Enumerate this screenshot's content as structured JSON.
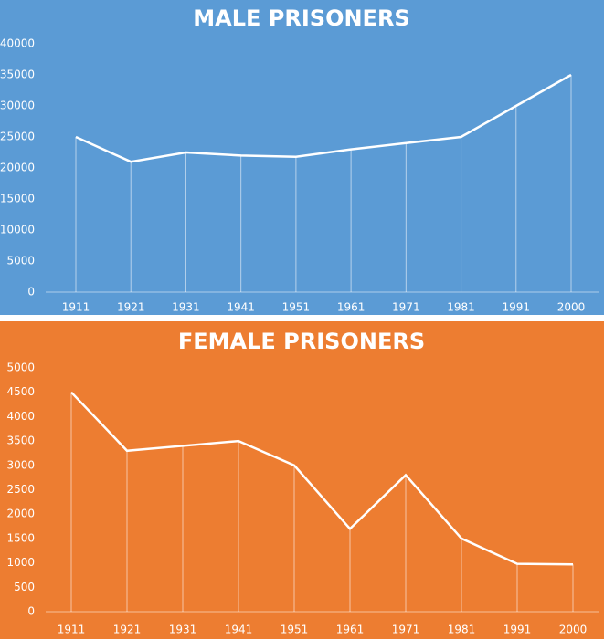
{
  "chart_data": [
    {
      "type": "line",
      "title": "MALE PRISONERS",
      "background": "#5b9bd5",
      "color": "#ffffff",
      "drop_lines": true,
      "categories": [
        "1911",
        "1921",
        "1931",
        "1941",
        "1951",
        "1961",
        "1971",
        "1981",
        "1991",
        "2000"
      ],
      "values": [
        25000,
        21000,
        22500,
        22000,
        21800,
        23000,
        24000,
        25000,
        30000,
        35000
      ],
      "ylim": [
        0,
        40000
      ],
      "yticks": [
        0,
        5000,
        10000,
        15000,
        20000,
        25000,
        30000,
        35000,
        40000
      ]
    },
    {
      "type": "line",
      "title": "FEMALE PRISONERS",
      "background": "#ed7d31",
      "color": "#ffffff",
      "drop_lines": true,
      "categories": [
        "1911",
        "1921",
        "1931",
        "1941",
        "1951",
        "1961",
        "1971",
        "1981",
        "1991",
        "2000"
      ],
      "values": [
        4500,
        3300,
        3400,
        3500,
        3000,
        1700,
        2800,
        1500,
        980,
        970
      ],
      "ylim": [
        0,
        5000
      ],
      "yticks": [
        0,
        500,
        1000,
        1500,
        2000,
        2500,
        3000,
        3500,
        4000,
        4500,
        5000
      ]
    }
  ]
}
